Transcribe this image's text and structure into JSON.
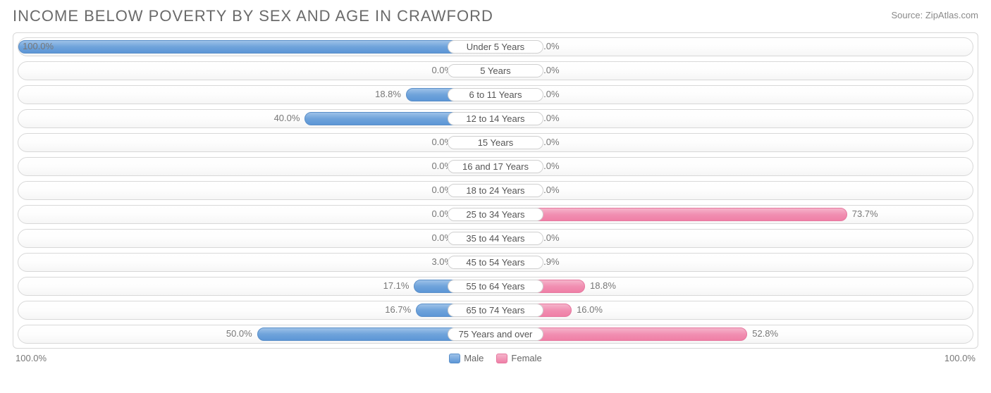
{
  "title": "INCOME BELOW POVERTY BY SEX AND AGE IN CRAWFORD",
  "source": "Source: ZipAtlas.com",
  "axis_left": "100.0%",
  "axis_right": "100.0%",
  "legend": {
    "male": "Male",
    "female": "Female"
  },
  "colors": {
    "male_top": "#9dc1e8",
    "male_bottom": "#5c96d6",
    "male_border": "#5a8fc9",
    "female_top": "#f5b4ca",
    "female_bottom": "#ef7fa6",
    "female_border": "#e6789f",
    "row_border": "#d8d8d8",
    "text": "#6a6a6a",
    "background": "#ffffff"
  },
  "min_bar_pct": 8.0,
  "max_scale": 100.0,
  "rows": [
    {
      "label": "Under 5 Years",
      "male": 100.0,
      "male_label": "100.0%",
      "female": 0.0,
      "female_label": "0.0%"
    },
    {
      "label": "5 Years",
      "male": 0.0,
      "male_label": "0.0%",
      "female": 0.0,
      "female_label": "0.0%"
    },
    {
      "label": "6 to 11 Years",
      "male": 18.8,
      "male_label": "18.8%",
      "female": 0.0,
      "female_label": "0.0%"
    },
    {
      "label": "12 to 14 Years",
      "male": 40.0,
      "male_label": "40.0%",
      "female": 0.0,
      "female_label": "0.0%"
    },
    {
      "label": "15 Years",
      "male": 0.0,
      "male_label": "0.0%",
      "female": 0.0,
      "female_label": "0.0%"
    },
    {
      "label": "16 and 17 Years",
      "male": 0.0,
      "male_label": "0.0%",
      "female": 0.0,
      "female_label": "0.0%"
    },
    {
      "label": "18 to 24 Years",
      "male": 0.0,
      "male_label": "0.0%",
      "female": 0.0,
      "female_label": "0.0%"
    },
    {
      "label": "25 to 34 Years",
      "male": 0.0,
      "male_label": "0.0%",
      "female": 73.7,
      "female_label": "73.7%"
    },
    {
      "label": "35 to 44 Years",
      "male": 0.0,
      "male_label": "0.0%",
      "female": 0.0,
      "female_label": "0.0%"
    },
    {
      "label": "45 to 54 Years",
      "male": 3.0,
      "male_label": "3.0%",
      "female": 6.9,
      "female_label": "6.9%"
    },
    {
      "label": "55 to 64 Years",
      "male": 17.1,
      "male_label": "17.1%",
      "female": 18.8,
      "female_label": "18.8%"
    },
    {
      "label": "65 to 74 Years",
      "male": 16.7,
      "male_label": "16.7%",
      "female": 16.0,
      "female_label": "16.0%"
    },
    {
      "label": "75 Years and over",
      "male": 50.0,
      "male_label": "50.0%",
      "female": 52.8,
      "female_label": "52.8%"
    }
  ]
}
